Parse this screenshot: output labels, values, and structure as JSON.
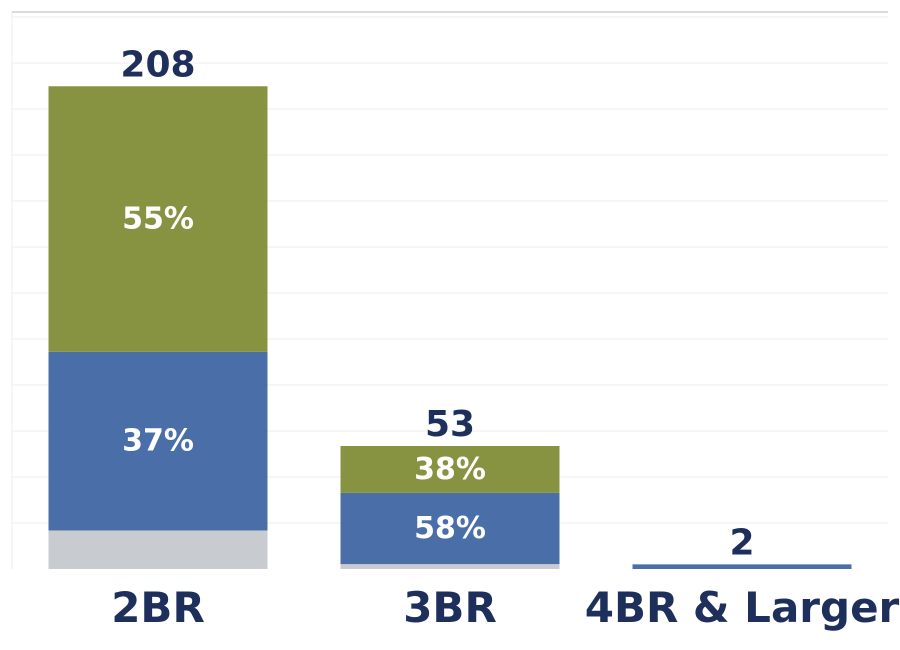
{
  "chart_data": {
    "type": "bar",
    "stacked": true,
    "categories": [
      "2BR",
      "3BR",
      "4BR & Larger"
    ],
    "totals": [
      208,
      53,
      2
    ],
    "total_labels": [
      "208",
      "53",
      "2"
    ],
    "series": [
      {
        "color": "#c8cbcf",
        "values": [
          16.6,
          2.1,
          0
        ],
        "labels": [
          "",
          "",
          ""
        ]
      },
      {
        "color": "#4a6fa8",
        "values": [
          77,
          30.7,
          2
        ],
        "labels": [
          "37%",
          "58%",
          ""
        ]
      },
      {
        "color": "#879340",
        "values": [
          114.4,
          20.2,
          0
        ],
        "labels": [
          "55%",
          "38%",
          ""
        ]
      }
    ],
    "ylim": [
      0,
      240
    ],
    "grid": true,
    "text_color": "#1f2f5c"
  }
}
